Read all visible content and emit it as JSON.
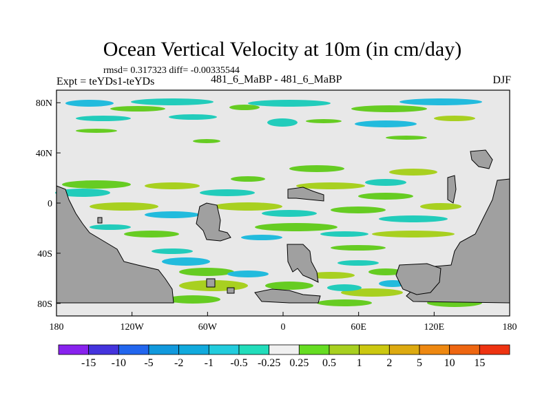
{
  "header": {
    "title": "Ocean Vertical Velocity at 10m (in cm/day)",
    "rmsd_line": "rmsd= 0.317323 diff= -0.00335544",
    "experiment": "Expt = teYDs1-teYDs",
    "center_label": "481_6_MaBP - 481_6_MaBP",
    "season": "DJF"
  },
  "map": {
    "lat_ticks": [
      {
        "label": "80N",
        "lat": 80
      },
      {
        "label": "40N",
        "lat": 40
      },
      {
        "label": "0",
        "lat": 0
      },
      {
        "label": "40S",
        "lat": -40
      },
      {
        "label": "80S",
        "lat": -80
      }
    ],
    "lon_ticks": [
      {
        "label": "180",
        "lon": -180
      },
      {
        "label": "120W",
        "lon": -120
      },
      {
        "label": "60W",
        "lon": -60
      },
      {
        "label": "0",
        "lon": 0
      },
      {
        "label": "60E",
        "lon": 60
      },
      {
        "label": "120E",
        "lon": 120
      },
      {
        "label": "180",
        "lon": 180
      }
    ],
    "colors": {
      "background_zero": "#e8e8e8",
      "land": "#a0a0a0",
      "pos_025_05": "#66cc22",
      "pos_05_1": "#a8d020",
      "neg_025_05": "#22ccbb",
      "neg_05_1": "#22bbdd"
    }
  },
  "colorbar": {
    "labels": [
      "-15",
      "-10",
      "-5",
      "-2",
      "-1",
      "-0.5",
      "-0.25",
      "0.25",
      "0.5",
      "1",
      "2",
      "5",
      "10",
      "15"
    ],
    "colors": [
      "#8822ee",
      "#4433dd",
      "#2266ee",
      "#1199dd",
      "#11aadd",
      "#22ccdd",
      "#22ddbb",
      "#f0f0f0",
      "#66dd22",
      "#a8d020",
      "#ccc810",
      "#ddaa10",
      "#ee8811",
      "#ee6611",
      "#ee3311"
    ]
  }
}
